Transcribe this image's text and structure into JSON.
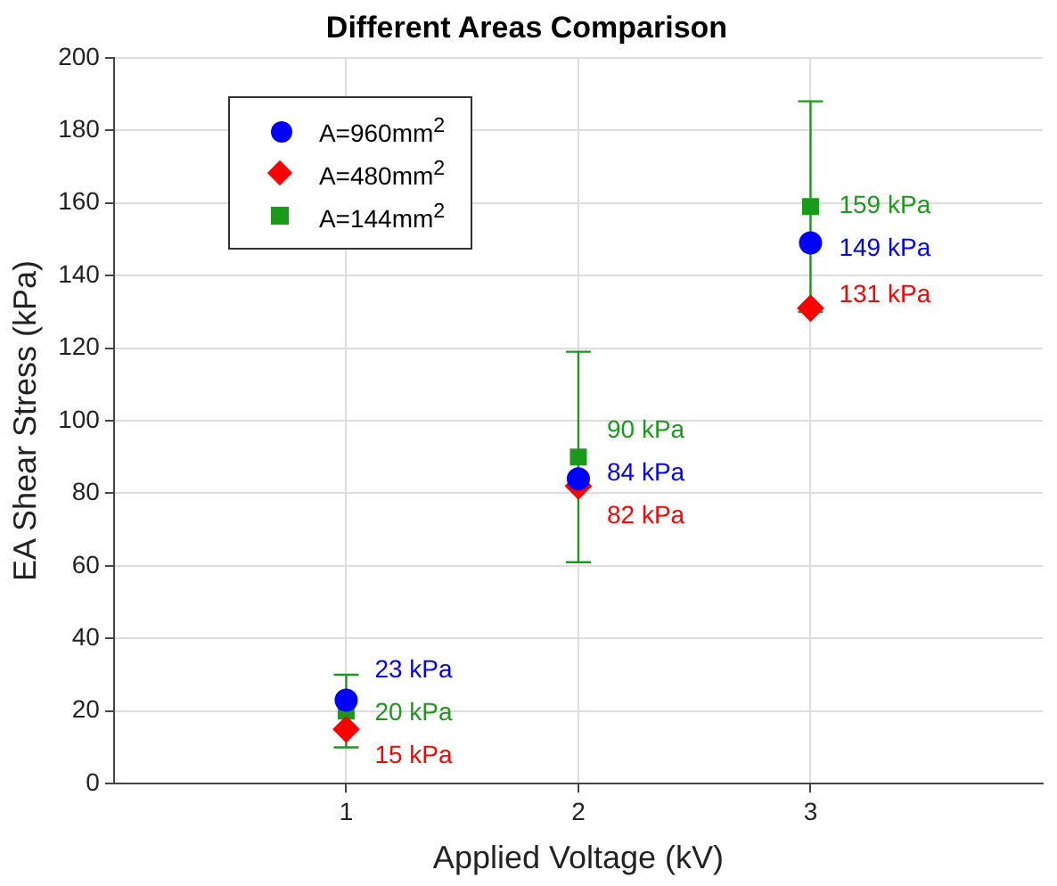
{
  "chart_data": {
    "type": "scatter",
    "title": "Different Areas Comparison",
    "xlabel": "Applied Voltage (kV)",
    "ylabel": "EA Shear Stress (kPa)",
    "x": [
      1,
      2,
      3
    ],
    "xlim": [
      0,
      4
    ],
    "xticks": [
      1,
      2,
      3
    ],
    "ylim": [
      0,
      200
    ],
    "yticks": [
      0,
      20,
      40,
      60,
      80,
      100,
      120,
      140,
      160,
      180,
      200
    ],
    "grid": true,
    "legend": "top left",
    "series": [
      {
        "name": "A=960mm$^{2}$",
        "color": "#0000ff",
        "marker": "circle",
        "values": [
          23,
          84,
          149
        ],
        "value_labels": [
          "23 kPa",
          "84 kPa",
          "149 kPa"
        ]
      },
      {
        "name": "A=480mm$^{2}$",
        "color": "#ff0000",
        "marker": "diamond",
        "values": [
          15,
          82,
          131
        ],
        "value_labels": [
          "15 kPa",
          "82 kPa",
          "131 kPa"
        ]
      },
      {
        "name": "A=144mm$^{2}$",
        "color": "#1a9a1a",
        "marker": "square",
        "values": [
          20,
          90,
          159
        ],
        "value_labels": [
          "20 kPa",
          "90 kPa",
          "159 kPa"
        ],
        "errors": [
          [
            10,
            30
          ],
          [
            61,
            119
          ],
          [
            130,
            188
          ]
        ]
      }
    ]
  }
}
